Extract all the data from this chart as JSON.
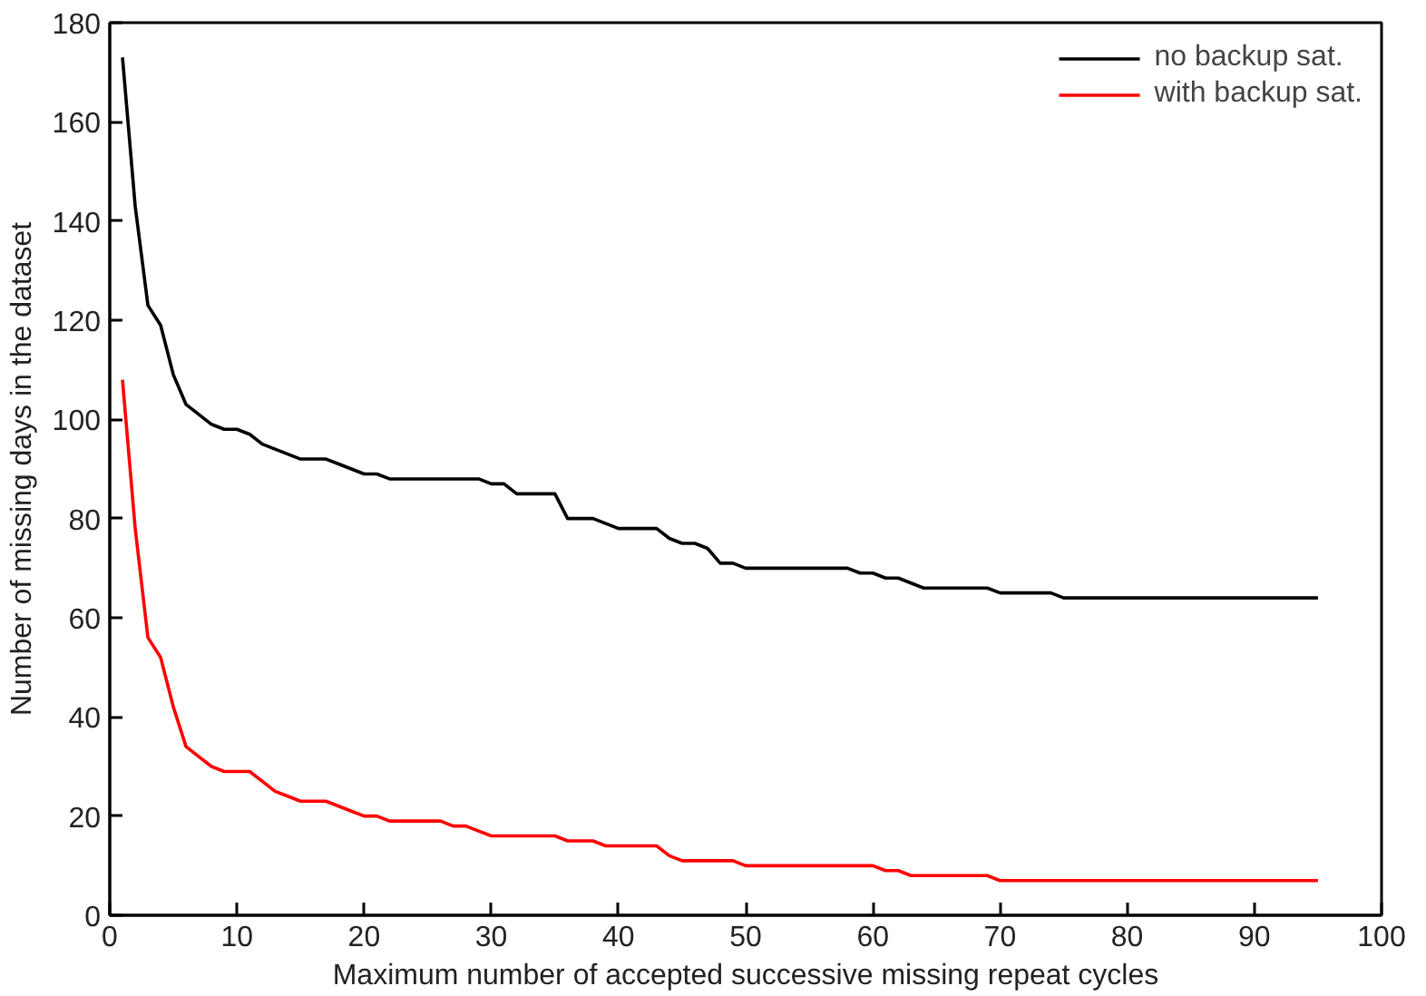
{
  "chart_data": {
    "type": "line",
    "xlabel": "Maximum number of accepted successive missing repeat cycles",
    "ylabel": "Number of missing days in the dataset",
    "xlim": [
      0,
      100
    ],
    "ylim": [
      0,
      180
    ],
    "xticks": [
      0,
      10,
      20,
      30,
      40,
      50,
      60,
      70,
      80,
      90,
      100
    ],
    "yticks": [
      0,
      20,
      40,
      60,
      80,
      100,
      120,
      140,
      160,
      180
    ],
    "grid": false,
    "legend": "top right",
    "marker": "none",
    "line_style": "solid",
    "series": [
      {
        "name": "no backup sat.",
        "color": "#000000",
        "x": [
          1,
          2,
          3,
          4,
          5,
          6,
          7,
          8,
          9,
          10,
          11,
          12,
          13,
          14,
          15,
          17,
          18,
          20,
          21,
          22,
          29,
          30,
          31,
          32,
          35,
          36,
          38,
          39,
          40,
          43,
          44,
          45,
          46,
          47,
          48,
          49,
          50,
          58,
          59,
          60,
          61,
          62,
          63,
          64,
          69,
          70,
          74,
          75,
          95
        ],
        "values": [
          173,
          143,
          123,
          119,
          109,
          103,
          101,
          99,
          98,
          98,
          97,
          95,
          94,
          93,
          92,
          92,
          91,
          89,
          89,
          88,
          88,
          87,
          87,
          85,
          85,
          80,
          80,
          79,
          78,
          78,
          76,
          75,
          75,
          74,
          71,
          71,
          70,
          70,
          69,
          69,
          68,
          68,
          67,
          66,
          66,
          65,
          65,
          64,
          64
        ]
      },
      {
        "name": "with backup sat.",
        "color": "#ff0000",
        "x": [
          1,
          2,
          3,
          4,
          5,
          6,
          7,
          8,
          9,
          11,
          12,
          13,
          14,
          15,
          17,
          18,
          19,
          20,
          21,
          22,
          26,
          27,
          28,
          29,
          30,
          35,
          36,
          38,
          39,
          43,
          44,
          45,
          49,
          50,
          60,
          61,
          62,
          63,
          69,
          70,
          95
        ],
        "values": [
          108,
          78,
          56,
          52,
          42,
          34,
          32,
          30,
          29,
          29,
          27,
          25,
          24,
          23,
          23,
          22,
          21,
          20,
          20,
          19,
          19,
          18,
          18,
          17,
          16,
          16,
          15,
          15,
          14,
          14,
          12,
          11,
          11,
          10,
          10,
          9,
          9,
          8,
          8,
          7,
          7
        ]
      }
    ]
  }
}
